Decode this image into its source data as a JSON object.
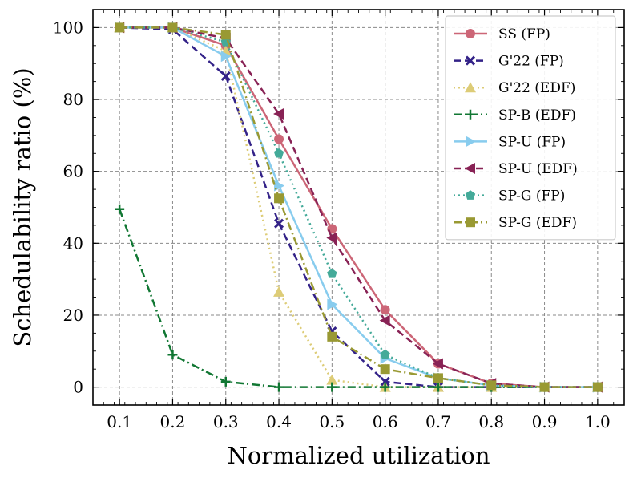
{
  "chart_data": {
    "type": "line",
    "title": "",
    "xlabel": "Normalized utilization",
    "ylabel": "Schedulability ratio (%)",
    "xlim": [
      0.05,
      1.05
    ],
    "ylim": [
      -5,
      105
    ],
    "grid": true,
    "legend_position": "top-right",
    "x": [
      0.1,
      0.2,
      0.3,
      0.4,
      0.5,
      0.6,
      0.7,
      0.8,
      0.9,
      1.0
    ],
    "xticks": [
      "0.1",
      "0.2",
      "0.3",
      "0.4",
      "0.5",
      "0.6",
      "0.7",
      "0.8",
      "0.9",
      "1.0"
    ],
    "yticks": [
      "0",
      "20",
      "40",
      "60",
      "80",
      "100"
    ],
    "series": [
      {
        "name": "SS (FP)",
        "color": "#cc6677",
        "dash": "solid",
        "marker": "circle",
        "values": [
          100,
          100,
          95,
          69,
          44,
          21.5,
          6.5,
          1,
          0,
          0
        ]
      },
      {
        "name": "G'22 (FP)",
        "color": "#332288",
        "dash": "dashed",
        "marker": "x",
        "values": [
          100,
          99.5,
          86.5,
          45.5,
          15.5,
          1.5,
          0,
          0,
          0,
          0
        ]
      },
      {
        "name": "G'22 (EDF)",
        "color": "#ddcc77",
        "dash": "dotted",
        "marker": "triangle-up",
        "values": [
          100,
          100,
          93.5,
          26.5,
          2,
          0,
          0,
          0,
          0,
          0
        ]
      },
      {
        "name": "SP-B (EDF)",
        "color": "#117733",
        "dash": "dashdot",
        "marker": "plus",
        "values": [
          49.5,
          9,
          1.5,
          0,
          0,
          0,
          0,
          0,
          0,
          0
        ]
      },
      {
        "name": "SP-U (FP)",
        "color": "#88ccee",
        "dash": "solid",
        "marker": "triangle-right",
        "values": [
          100,
          100,
          92,
          56,
          23,
          8,
          2.5,
          0.5,
          0,
          0
        ]
      },
      {
        "name": "SP-U (EDF)",
        "color": "#882255",
        "dash": "dashed",
        "marker": "triangle-left",
        "values": [
          100,
          100,
          97,
          76,
          41.5,
          18.5,
          6.5,
          1,
          0,
          0
        ]
      },
      {
        "name": "SP-G (FP)",
        "color": "#44aa99",
        "dash": "dotted",
        "marker": "pentagon",
        "values": [
          100,
          100,
          96,
          65,
          31.5,
          9,
          2.5,
          0.5,
          0,
          0
        ]
      },
      {
        "name": "SP-G (EDF)",
        "color": "#999933",
        "dash": "dashdot",
        "marker": "square",
        "values": [
          100,
          100,
          98,
          52.5,
          14,
          5,
          2.5,
          0.5,
          0,
          0
        ]
      }
    ]
  }
}
